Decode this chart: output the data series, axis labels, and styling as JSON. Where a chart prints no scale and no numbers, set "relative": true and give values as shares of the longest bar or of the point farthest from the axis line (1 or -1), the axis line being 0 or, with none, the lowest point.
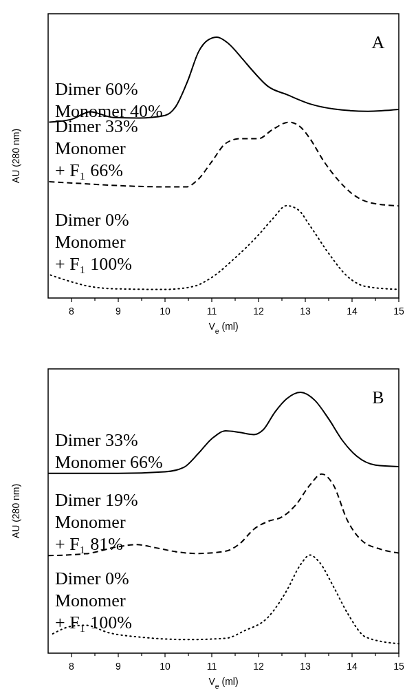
{
  "chart_data": [
    {
      "type": "line",
      "title": "A",
      "xlabel": "V$_{e}$ (ml)",
      "ylabel": "AU (280 nm)",
      "relative": true,
      "xlim": [
        7.5,
        15
      ],
      "xticks": [
        8,
        {
          "value": 8.5,
          "label": null
        },
        9,
        {
          "value": 9.5,
          "label": null
        },
        10,
        {
          "value": 10.5,
          "label": null
        },
        11,
        {
          "value": 11.5,
          "label": null
        },
        12,
        {
          "value": 12.5,
          "label": null
        },
        13,
        {
          "value": 13.5,
          "label": null
        },
        14,
        {
          "value": 14.5,
          "label": null
        },
        15
      ],
      "grid": false,
      "legend": false,
      "marker": "none",
      "series": [
        {
          "name": "Dimer 60%\nMonomer 40%",
          "color": "#000000",
          "line_style": "solid",
          "x": [
            7.52,
            8.0,
            8.4,
            8.9,
            9.45,
            10.0,
            10.23,
            10.48,
            10.72,
            10.92,
            11.11,
            11.36,
            11.65,
            11.9,
            12.19,
            12.63,
            13.12,
            13.6,
            14.34,
            15.0
          ],
          "values": [
            0.674,
            0.685,
            0.714,
            0.692,
            0.69,
            0.7,
            0.734,
            0.83,
            0.945,
            0.989,
            1.0,
            0.975,
            0.918,
            0.866,
            0.813,
            0.778,
            0.743,
            0.725,
            0.716,
            0.723
          ]
        },
        {
          "name": "Dimer 33%\nMonomer\n+ F₁ 66%",
          "color": "#000000",
          "line_style": "dashed",
          "x": [
            7.52,
            8.2,
            9.0,
            10.0,
            10.45,
            10.7,
            11.0,
            11.3,
            11.6,
            12.0,
            12.3,
            12.65,
            12.9,
            13.1,
            13.4,
            13.7,
            14.0,
            14.4,
            15.0
          ],
          "values": [
            0.446,
            0.439,
            0.431,
            0.426,
            0.426,
            0.453,
            0.523,
            0.593,
            0.611,
            0.611,
            0.646,
            0.674,
            0.655,
            0.611,
            0.523,
            0.453,
            0.4,
            0.365,
            0.353
          ]
        },
        {
          "name": "Dimer 0%\nMonomer\n+ F₁ 100%",
          "color": "#000000",
          "line_style": "dotted",
          "x": [
            7.55,
            8.0,
            8.4,
            9.0,
            10.0,
            10.6,
            11.0,
            11.5,
            12.0,
            12.3,
            12.6,
            12.85,
            13.1,
            13.5,
            13.9,
            14.3,
            15.0
          ],
          "values": [
            0.088,
            0.062,
            0.044,
            0.035,
            0.033,
            0.044,
            0.079,
            0.154,
            0.242,
            0.303,
            0.354,
            0.338,
            0.277,
            0.171,
            0.083,
            0.044,
            0.033
          ]
        }
      ]
    },
    {
      "type": "line",
      "title": "B",
      "xlabel": "V$_{e}$ (ml)",
      "ylabel": "AU (280 nm)",
      "relative": true,
      "xlim": [
        7.5,
        15
      ],
      "xticks": [
        8,
        {
          "value": 8.5,
          "label": null
        },
        9,
        {
          "value": 9.5,
          "label": null
        },
        10,
        {
          "value": 10.5,
          "label": null
        },
        11,
        {
          "value": 11.5,
          "label": null
        },
        12,
        {
          "value": 12.5,
          "label": null
        },
        13,
        {
          "value": 13.5,
          "label": null
        },
        14,
        {
          "value": 14.5,
          "label": null
        },
        15
      ],
      "grid": false,
      "legend": false,
      "marker": "none",
      "series": [
        {
          "name": "Dimer 33%\nMonomer 66%",
          "color": "#000000",
          "line_style": "solid",
          "x": [
            7.5,
            9.0,
            10.0,
            10.4,
            10.7,
            11.0,
            11.3,
            11.6,
            11.9,
            12.1,
            12.35,
            12.6,
            12.9,
            13.2,
            13.5,
            13.8,
            14.1,
            14.5,
            15.0
          ],
          "values": [
            0.689,
            0.689,
            0.695,
            0.712,
            0.763,
            0.822,
            0.852,
            0.846,
            0.838,
            0.856,
            0.924,
            0.975,
            1.0,
            0.97,
            0.898,
            0.814,
            0.755,
            0.721,
            0.715
          ]
        },
        {
          "name": "Dimer 19%\nMonomer\n+ F₁ 81%",
          "color": "#000000",
          "line_style": "dashed",
          "x": [
            7.5,
            8.3,
            9.0,
            9.4,
            9.8,
            10.3,
            10.7,
            11.3,
            11.6,
            11.9,
            12.2,
            12.5,
            12.8,
            13.1,
            13.35,
            13.6,
            13.9,
            14.2,
            14.6,
            15.0
          ],
          "values": [
            0.374,
            0.381,
            0.408,
            0.416,
            0.404,
            0.387,
            0.382,
            0.391,
            0.42,
            0.475,
            0.505,
            0.522,
            0.569,
            0.645,
            0.687,
            0.645,
            0.509,
            0.433,
            0.399,
            0.384
          ]
        },
        {
          "name": "Dimer 0%\nMonomer\n+ F₁ 100%",
          "color": "#000000",
          "line_style": "dotted",
          "x": [
            7.6,
            8.0,
            8.3,
            8.8,
            9.5,
            10.5,
            11.3,
            11.7,
            12.2,
            12.6,
            12.9,
            13.1,
            13.3,
            13.6,
            13.9,
            14.3,
            15.0
          ],
          "values": [
            0.074,
            0.103,
            0.107,
            0.078,
            0.061,
            0.052,
            0.057,
            0.086,
            0.137,
            0.239,
            0.34,
            0.376,
            0.349,
            0.256,
            0.154,
            0.061,
            0.036
          ]
        }
      ]
    }
  ]
}
